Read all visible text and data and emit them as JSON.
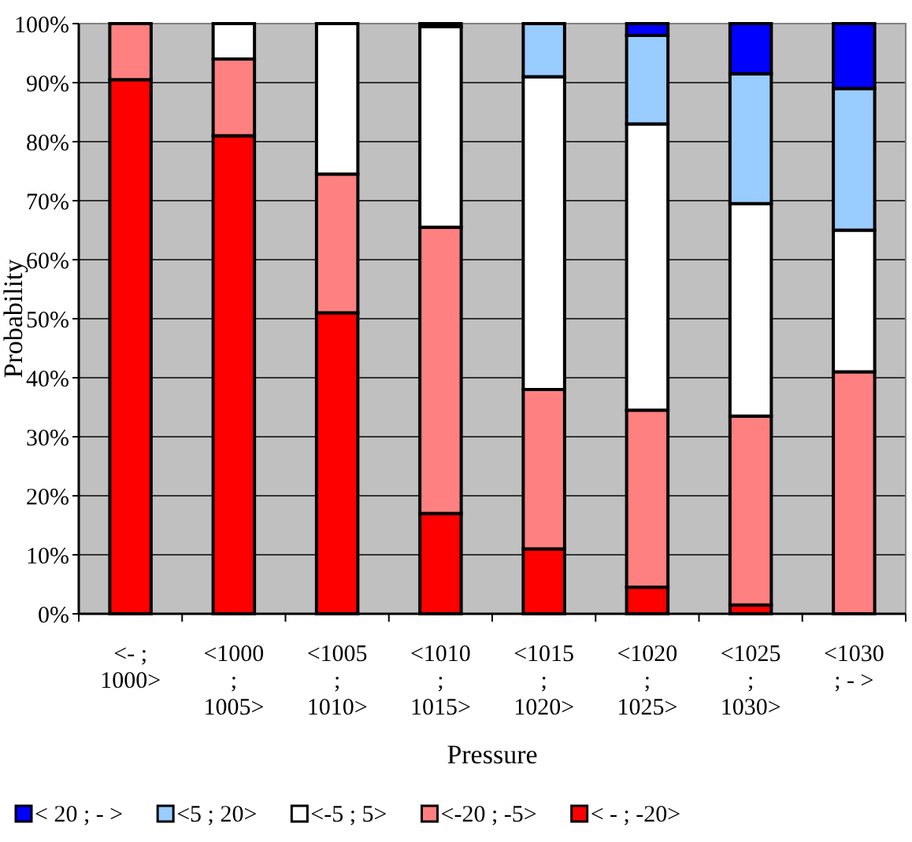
{
  "chart_data": {
    "type": "bar",
    "stacked": true,
    "xlabel": "Pressure",
    "ylabel": "Probability",
    "categories": [
      "<- ; 1000>",
      "<1000 ; 1005>",
      "<1005 ; 1010>",
      "<1010 ; 1015>",
      "<1015 ; 1020>",
      "<1020 ; 1025>",
      "<1025 ; 1030>",
      "<1030 ; - >"
    ],
    "series": [
      {
        "name": "< - ; -20>",
        "color": "#ff0000",
        "values": [
          90.5,
          81,
          51,
          17,
          11,
          4.5,
          1.5,
          null
        ]
      },
      {
        "name": "<-20 ; -5>",
        "color": "#ff8080",
        "values": [
          9.5,
          13,
          23.5,
          48.5,
          27,
          30,
          32,
          41
        ]
      },
      {
        "name": "<-5 ; 5>",
        "color": "#ffffff",
        "values": [
          null,
          6,
          25.5,
          34,
          53,
          48.5,
          36,
          24
        ]
      },
      {
        "name": "<5 ; 20>",
        "color": "#99ccff",
        "values": [
          null,
          null,
          null,
          0.5,
          9,
          15,
          22,
          24
        ]
      },
      {
        "name": "< 20 ; - >",
        "color": "#0000ff",
        "values": [
          null,
          null,
          null,
          null,
          null,
          2,
          8.5,
          11
        ]
      }
    ],
    "ylim": [
      0,
      100
    ],
    "yticks": [
      {
        "value": 0,
        "label": "0%"
      },
      {
        "value": 10,
        "label": "10%"
      },
      {
        "value": 20,
        "label": "20%"
      },
      {
        "value": 30,
        "label": "30%"
      },
      {
        "value": 40,
        "label": "40%"
      },
      {
        "value": 50,
        "label": "50%"
      },
      {
        "value": 60,
        "label": "60%"
      },
      {
        "value": 70,
        "label": "70%"
      },
      {
        "value": 80,
        "label": "80%"
      },
      {
        "value": 90,
        "label": "90%"
      },
      {
        "value": 100,
        "label": "100%"
      }
    ],
    "grid": "y",
    "legend": "bottom"
  }
}
